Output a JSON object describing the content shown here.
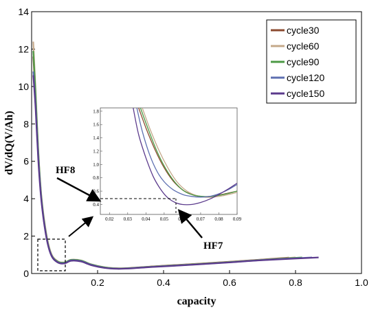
{
  "chart_data": {
    "type": "line",
    "title": "",
    "xlabel": "capacity",
    "ylabel": "dV/dQ(V/Ah)",
    "xlim": [
      0.0,
      1.0
    ],
    "ylim": [
      0,
      14
    ],
    "xticks": [
      0.2,
      0.4,
      0.6,
      0.8,
      1.0
    ],
    "xtick_labels": [
      "0.2",
      "0.4",
      "0.6",
      "0.8",
      "1.0"
    ],
    "yticks": [
      0,
      2,
      4,
      6,
      8,
      10,
      12,
      14
    ],
    "ytick_labels": [
      "0",
      "2",
      "4",
      "6",
      "8",
      "10",
      "12",
      "14"
    ],
    "grid": false,
    "legend_position": "top-right",
    "series": [
      {
        "name": "cycle30",
        "color": "#8B4A2F",
        "x": [
          0.005,
          0.012,
          0.02,
          0.03,
          0.045,
          0.06,
          0.08,
          0.1,
          0.12,
          0.15,
          0.18,
          0.22,
          0.26,
          0.3,
          0.35,
          0.4,
          0.5,
          0.6,
          0.7,
          0.78
        ],
        "y": [
          11.6,
          9.5,
          6.5,
          4.0,
          2.0,
          1.0,
          0.62,
          0.58,
          0.72,
          0.68,
          0.48,
          0.33,
          0.28,
          0.3,
          0.36,
          0.42,
          0.52,
          0.63,
          0.75,
          0.85
        ]
      },
      {
        "name": "cycle60",
        "color": "#C4A889",
        "x": [
          0.005,
          0.012,
          0.02,
          0.03,
          0.045,
          0.06,
          0.08,
          0.1,
          0.12,
          0.15,
          0.18,
          0.22,
          0.26,
          0.3,
          0.35,
          0.4,
          0.5,
          0.6,
          0.7,
          0.8
        ],
        "y": [
          12.4,
          9.8,
          6.7,
          4.1,
          2.1,
          1.05,
          0.65,
          0.6,
          0.74,
          0.7,
          0.5,
          0.34,
          0.28,
          0.29,
          0.35,
          0.41,
          0.51,
          0.62,
          0.74,
          0.86
        ]
      },
      {
        "name": "cycle90",
        "color": "#4C9A45",
        "x": [
          0.005,
          0.012,
          0.02,
          0.03,
          0.045,
          0.06,
          0.08,
          0.1,
          0.12,
          0.15,
          0.18,
          0.22,
          0.26,
          0.3,
          0.35,
          0.4,
          0.5,
          0.6,
          0.7,
          0.82
        ],
        "y": [
          11.9,
          9.6,
          6.6,
          4.0,
          2.0,
          1.0,
          0.63,
          0.59,
          0.73,
          0.69,
          0.49,
          0.33,
          0.27,
          0.29,
          0.35,
          0.4,
          0.5,
          0.61,
          0.73,
          0.86
        ]
      },
      {
        "name": "cycle120",
        "color": "#5D6FB0",
        "x": [
          0.005,
          0.012,
          0.02,
          0.03,
          0.045,
          0.06,
          0.08,
          0.1,
          0.12,
          0.15,
          0.18,
          0.22,
          0.26,
          0.3,
          0.35,
          0.4,
          0.5,
          0.6,
          0.7,
          0.85
        ],
        "y": [
          10.8,
          9.0,
          6.3,
          3.9,
          1.95,
          0.98,
          0.6,
          0.56,
          0.7,
          0.66,
          0.47,
          0.31,
          0.26,
          0.28,
          0.34,
          0.39,
          0.49,
          0.6,
          0.72,
          0.86
        ]
      },
      {
        "name": "cycle150",
        "color": "#5B3A8C",
        "x": [
          0.005,
          0.012,
          0.02,
          0.03,
          0.045,
          0.06,
          0.08,
          0.1,
          0.12,
          0.15,
          0.18,
          0.22,
          0.26,
          0.3,
          0.35,
          0.4,
          0.5,
          0.6,
          0.7,
          0.87
        ],
        "y": [
          10.6,
          8.8,
          6.1,
          3.8,
          1.9,
          0.95,
          0.58,
          0.54,
          0.68,
          0.64,
          0.45,
          0.3,
          0.25,
          0.27,
          0.33,
          0.38,
          0.48,
          0.59,
          0.71,
          0.86
        ]
      }
    ],
    "inset": {
      "xlim": [
        0.015,
        0.09
      ],
      "ylim": [
        0.25,
        1.85
      ],
      "xticks": [
        0.02,
        0.03,
        0.04,
        0.05,
        0.06,
        0.07,
        0.08,
        0.09
      ],
      "xtick_labels": [
        "0.02",
        "0.03",
        "0.04",
        "0.05",
        "0.06",
        "0.07",
        "0.08",
        "0.09"
      ],
      "yticks": [
        0.4,
        0.6,
        0.8,
        1.0,
        1.2,
        1.4,
        1.6,
        1.8
      ],
      "ytick_labels": [
        "0.4",
        "0.6",
        "0.8",
        "1.0",
        "1.2",
        "1.4",
        "1.6",
        "1.8"
      ],
      "series": [
        {
          "name": "cycle30",
          "color": "#8B4A2F",
          "x": [
            0.036,
            0.04,
            0.045,
            0.05,
            0.055,
            0.06,
            0.065,
            0.07,
            0.075,
            0.08,
            0.085,
            0.09
          ],
          "y": [
            1.85,
            1.55,
            1.22,
            0.95,
            0.75,
            0.62,
            0.55,
            0.52,
            0.52,
            0.54,
            0.57,
            0.6
          ]
        },
        {
          "name": "cycle60",
          "color": "#C4A889",
          "x": [
            0.038,
            0.042,
            0.047,
            0.052,
            0.057,
            0.062,
            0.067,
            0.072,
            0.077,
            0.082,
            0.087,
            0.09
          ],
          "y": [
            1.85,
            1.55,
            1.22,
            0.95,
            0.74,
            0.61,
            0.54,
            0.51,
            0.51,
            0.53,
            0.56,
            0.58
          ]
        },
        {
          "name": "cycle90",
          "color": "#4C9A45",
          "x": [
            0.037,
            0.041,
            0.046,
            0.051,
            0.056,
            0.061,
            0.066,
            0.071,
            0.076,
            0.081,
            0.086,
            0.09
          ],
          "y": [
            1.85,
            1.55,
            1.2,
            0.93,
            0.73,
            0.6,
            0.54,
            0.52,
            0.52,
            0.54,
            0.57,
            0.6
          ]
        },
        {
          "name": "cycle120",
          "color": "#5D6FB0",
          "x": [
            0.035,
            0.038,
            0.042,
            0.046,
            0.05,
            0.055,
            0.06,
            0.065,
            0.07,
            0.075,
            0.08,
            0.085,
            0.09
          ],
          "y": [
            1.85,
            1.5,
            1.15,
            0.9,
            0.74,
            0.62,
            0.55,
            0.52,
            0.51,
            0.52,
            0.56,
            0.62,
            0.7
          ]
        },
        {
          "name": "cycle150",
          "color": "#5B3A8C",
          "x": [
            0.033,
            0.036,
            0.04,
            0.044,
            0.048,
            0.052,
            0.056,
            0.06,
            0.065,
            0.07,
            0.075,
            0.08,
            0.085,
            0.09
          ],
          "y": [
            1.85,
            1.45,
            1.1,
            0.82,
            0.63,
            0.5,
            0.43,
            0.4,
            0.4,
            0.43,
            0.48,
            0.55,
            0.63,
            0.72
          ]
        }
      ]
    },
    "annotations": [
      {
        "text": "HF8"
      },
      {
        "text": "HF7"
      }
    ]
  }
}
